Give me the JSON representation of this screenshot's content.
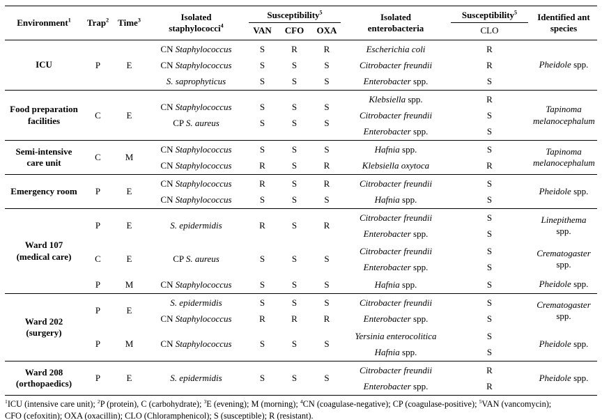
{
  "header": {
    "environment": "Environment",
    "environment_sup": "1",
    "trap": "Trap",
    "trap_sup": "2",
    "time": "Time",
    "time_sup": "3",
    "staphylococci": "Isolated staphylococci",
    "staphylococci_sup": "4",
    "susceptibility": "Susceptibility",
    "susceptibility_sup": "5",
    "van": "VAN",
    "cfo": "CFO",
    "oxa": "OXA",
    "enterobacteria": "Isolated enterobacteria",
    "clo": "CLO",
    "ant_species": "Identified ant species"
  },
  "sections": [
    {
      "environment": "ICU",
      "groups": [
        {
          "trap": "P",
          "time": "E",
          "staph": [
            {
              "prefix": "CN ",
              "species": "Staphylococcus",
              "van": "S",
              "cfo": "R",
              "oxa": "R"
            },
            {
              "prefix": "CN ",
              "species": "Staphylococcus",
              "van": "S",
              "cfo": "S",
              "oxa": "S"
            },
            {
              "prefix": "",
              "species": "S. saprophyticus",
              "van": "S",
              "cfo": "S",
              "oxa": "S"
            }
          ],
          "entero": [
            {
              "species": "Escherichia coli",
              "suffix": "",
              "clo": "R"
            },
            {
              "species": "Citrobacter freundii",
              "suffix": "",
              "clo": "R"
            },
            {
              "species": "Enterobacter",
              "suffix": " spp.",
              "clo": "S"
            }
          ],
          "ant": {
            "name": "Pheidole",
            "suffix": " spp."
          }
        }
      ]
    },
    {
      "environment": "Food preparation facilities",
      "groups": [
        {
          "trap": "C",
          "time": "E",
          "staph": [
            {
              "prefix": "CN ",
              "species": "Staphylococcus",
              "van": "S",
              "cfo": "S",
              "oxa": "S"
            },
            {
              "prefix": "CP ",
              "species": "S. aureus",
              "van": "S",
              "cfo": "S",
              "oxa": "S"
            }
          ],
          "entero": [
            {
              "species": "Klebsiella",
              "suffix": " spp.",
              "clo": "R"
            },
            {
              "species": "Citrobacter freundii",
              "suffix": "",
              "clo": "S"
            },
            {
              "species": "Enterobacter",
              "suffix": " spp.",
              "clo": "S"
            }
          ],
          "ant": {
            "name": "Tapinoma melanocephalum",
            "suffix": ""
          }
        }
      ]
    },
    {
      "environment": "Semi-intensive care unit",
      "groups": [
        {
          "trap": "C",
          "time": "M",
          "staph": [
            {
              "prefix": "CN ",
              "species": "Staphylococcus",
              "van": "S",
              "cfo": "S",
              "oxa": "S"
            },
            {
              "prefix": "CN ",
              "species": "Staphylococcus",
              "van": "R",
              "cfo": "S",
              "oxa": "R"
            }
          ],
          "entero": [
            {
              "species": "Hafnia",
              "suffix": " spp.",
              "clo": "S"
            },
            {
              "species": "Klebsiella oxytoca",
              "suffix": "",
              "clo": "R"
            }
          ],
          "ant": {
            "name": "Tapinoma melanocephalum",
            "suffix": ""
          }
        }
      ]
    },
    {
      "environment": "Emergency room",
      "groups": [
        {
          "trap": "P",
          "time": "E",
          "staph": [
            {
              "prefix": "CN ",
              "species": "Staphylococcus",
              "van": "R",
              "cfo": "S",
              "oxa": "R"
            },
            {
              "prefix": "CN ",
              "species": "Staphylococcus",
              "van": "S",
              "cfo": "S",
              "oxa": "S"
            }
          ],
          "entero": [
            {
              "species": "Citrobacter freundii",
              "suffix": "",
              "clo": "S"
            },
            {
              "species": "Hafnia",
              "suffix": " spp.",
              "clo": "S"
            }
          ],
          "ant": {
            "name": "Pheidole",
            "suffix": " spp."
          }
        }
      ]
    },
    {
      "environment": "Ward 107 (medical care)",
      "groups": [
        {
          "trap": "P",
          "time": "E",
          "staph": [
            {
              "prefix": "",
              "species": "S. epidermidis",
              "van": "R",
              "cfo": "S",
              "oxa": "R"
            }
          ],
          "entero": [
            {
              "species": "Citrobacter freundii",
              "suffix": "",
              "clo": "S"
            },
            {
              "species": "Enterobacter",
              "suffix": " spp.",
              "clo": "S"
            }
          ],
          "ant": {
            "name": "Linepithema",
            "suffix": " spp."
          }
        },
        {
          "trap": "C",
          "time": "E",
          "staph": [
            {
              "prefix": "CP ",
              "species": "S. aureus",
              "van": "S",
              "cfo": "S",
              "oxa": "S"
            }
          ],
          "entero": [
            {
              "species": "Citrobacter freundii",
              "suffix": "",
              "clo": "S"
            },
            {
              "species": "Enterobacter",
              "suffix": " spp.",
              "clo": "S"
            }
          ],
          "ant": {
            "name": "Crematogaster",
            "suffix": " spp."
          }
        },
        {
          "trap": "P",
          "time": "M",
          "staph": [
            {
              "prefix": "CN ",
              "species": "Staphylococcus",
              "van": "S",
              "cfo": "S",
              "oxa": "S"
            }
          ],
          "entero": [
            {
              "species": "Hafnia",
              "suffix": " spp.",
              "clo": "S"
            }
          ],
          "ant": {
            "name": "Pheidole",
            "suffix": " spp."
          }
        }
      ]
    },
    {
      "environment": "Ward 202 (surgery)",
      "groups": [
        {
          "trap": "P",
          "time": "E",
          "staph": [
            {
              "prefix": "",
              "species": "S. epidermidis",
              "van": "S",
              "cfo": "S",
              "oxa": "S"
            },
            {
              "prefix": "CN ",
              "species": "Staphylococcus",
              "van": "R",
              "cfo": "R",
              "oxa": "R"
            }
          ],
          "entero": [
            {
              "species": "Citrobacter freundii",
              "suffix": "",
              "clo": "S"
            },
            {
              "species": "Enterobacter",
              "suffix": " spp.",
              "clo": "S"
            }
          ],
          "ant": {
            "name": "Crematogaster",
            "suffix": " spp."
          }
        },
        {
          "trap": "P",
          "time": "M",
          "staph": [
            {
              "prefix": "CN ",
              "species": "Staphylococcus",
              "van": "S",
              "cfo": "S",
              "oxa": "S"
            }
          ],
          "entero": [
            {
              "species": "Yersinia enterocolitica",
              "suffix": "",
              "clo": "S"
            },
            {
              "species": "Hafnia",
              "suffix": " spp.",
              "clo": "S"
            }
          ],
          "ant": {
            "name": "Pheidole",
            "suffix": " spp."
          }
        }
      ]
    },
    {
      "environment": "Ward 208 (orthopaedics)",
      "groups": [
        {
          "trap": "P",
          "time": "E",
          "staph": [
            {
              "prefix": "",
              "species": "S. epidermidis",
              "van": "S",
              "cfo": "S",
              "oxa": "S"
            }
          ],
          "entero": [
            {
              "species": "Citrobacter freundii",
              "suffix": "",
              "clo": "R"
            },
            {
              "species": "Enterobacter",
              "suffix": " spp.",
              "clo": "R"
            }
          ],
          "ant": {
            "name": "Pheidole",
            "suffix": " spp."
          }
        }
      ]
    }
  ],
  "footnotes": {
    "lines": [
      [
        {
          "sup": "1",
          "text": "ICU (intensive care unit); "
        },
        {
          "sup": "2",
          "text": "P (protein), C (carbohydrate); "
        },
        {
          "sup": "3",
          "text": "E (evening); M (morning); "
        },
        {
          "sup": "4",
          "text": "CN (coagulase-negative); CP (coagulase-positive); "
        },
        {
          "sup": "5",
          "text": "VAN (vancomycin);"
        }
      ],
      [
        {
          "sup": "",
          "text": "CFO (cefoxitin); OXA (oxacillin); CLO (Chloramphenicol); S (susceptible); R (resistant)."
        }
      ]
    ]
  }
}
